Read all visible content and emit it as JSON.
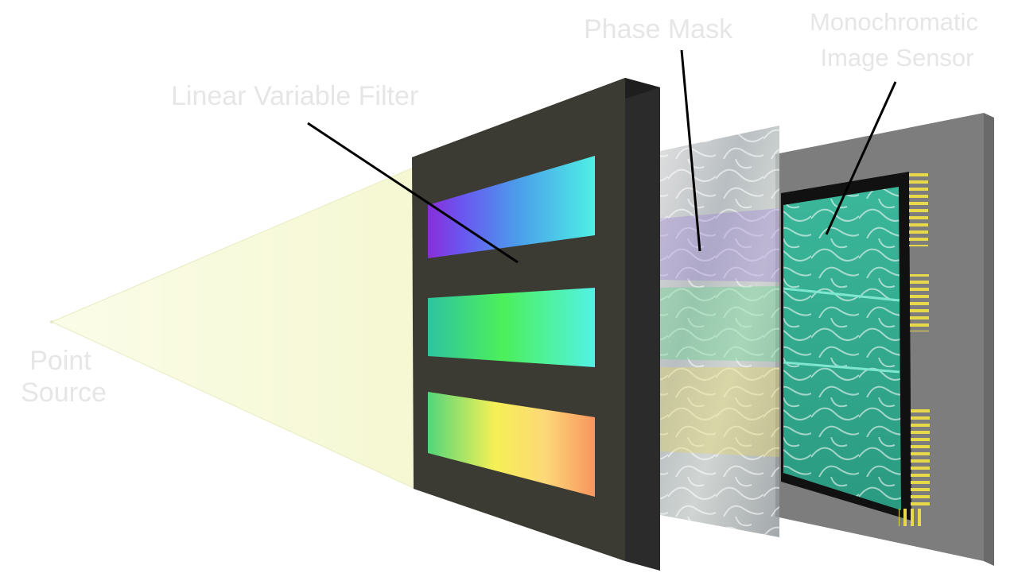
{
  "labels": {
    "point_source_line1": "Point",
    "point_source_line2": "Source",
    "linear_variable_filter": "Linear Variable Filter",
    "phase_mask": "Phase Mask",
    "sensor_line1": "Monochromatic",
    "sensor_line2": "Image Sensor"
  },
  "colors": {
    "light_cone": "#f9fbdc",
    "filter_frame": "#3c3b33",
    "filter_edge": "#2b2b2b",
    "sensor_board": "#7d7d7d",
    "sensor_active": "#2fa58a",
    "sensor_pins": "#e8d94a",
    "label_text": "#e6e6e6",
    "leader_line": "#000000"
  }
}
